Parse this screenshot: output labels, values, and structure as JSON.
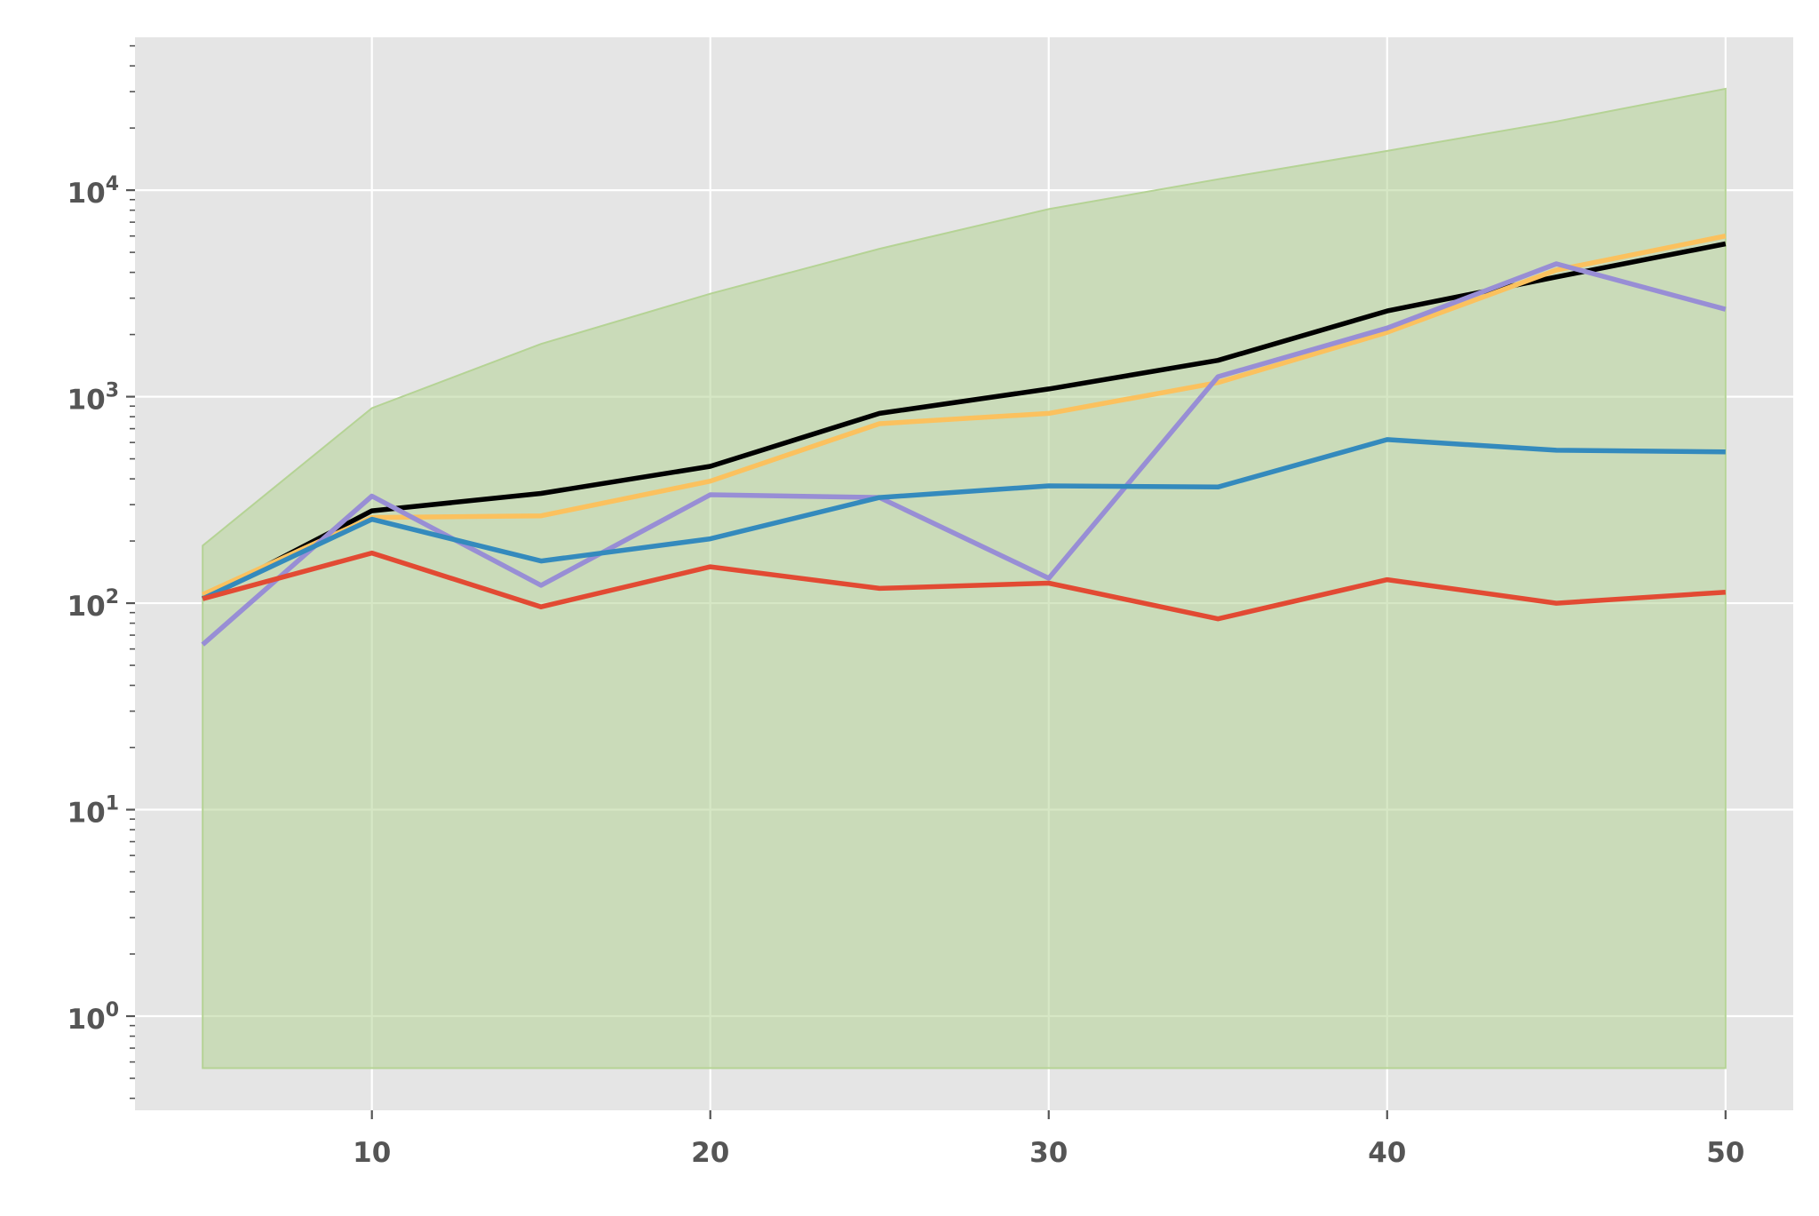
{
  "chart_data": {
    "type": "line",
    "title": "",
    "xlabel": "",
    "ylabel": "",
    "xlim": [
      3,
      52
    ],
    "ylim": [
      0.35,
      55000
    ],
    "yscale": "log",
    "grid": true,
    "legend": "none",
    "x": [
      5,
      10,
      15,
      20,
      25,
      30,
      35,
      40,
      45,
      50
    ],
    "x_ticks": [
      {
        "value": 10,
        "label": "10"
      },
      {
        "value": 20,
        "label": "20"
      },
      {
        "value": 30,
        "label": "30"
      },
      {
        "value": 40,
        "label": "40"
      },
      {
        "value": 50,
        "label": "50"
      }
    ],
    "y_ticks": [
      {
        "value": 1,
        "base": "10",
        "exp": "0"
      },
      {
        "value": 10,
        "base": "10",
        "exp": "1"
      },
      {
        "value": 100,
        "base": "10",
        "exp": "2"
      },
      {
        "value": 1000,
        "base": "10",
        "exp": "3"
      },
      {
        "value": 10000,
        "base": "10",
        "exp": "4"
      }
    ],
    "band": {
      "color": "#B5D395",
      "lower": [
        0.56,
        0.56,
        0.56,
        0.56,
        0.56,
        0.56,
        0.56,
        0.56,
        0.56,
        0.56
      ],
      "upper": [
        190,
        880,
        1800,
        3150,
        5200,
        8100,
        11300,
        15500,
        21500,
        31000
      ]
    },
    "series": [
      {
        "color": "#000000",
        "values": [
          105,
          280,
          340,
          460,
          830,
          1090,
          1500,
          2600,
          3800,
          5500
        ]
      },
      {
        "color": "#FBC15E",
        "values": [
          110,
          260,
          265,
          390,
          740,
          830,
          1170,
          2050,
          4100,
          6000
        ]
      },
      {
        "color": "#988ED5",
        "values": [
          63,
          330,
          122,
          335,
          325,
          132,
          1250,
          2150,
          4400,
          2650
        ]
      },
      {
        "color": "#348ABD",
        "values": [
          105,
          255,
          160,
          205,
          325,
          370,
          365,
          620,
          550,
          540
        ]
      },
      {
        "color": "#E24A33",
        "values": [
          105,
          175,
          96,
          150,
          118,
          125,
          84,
          130,
          100,
          113
        ]
      }
    ]
  }
}
